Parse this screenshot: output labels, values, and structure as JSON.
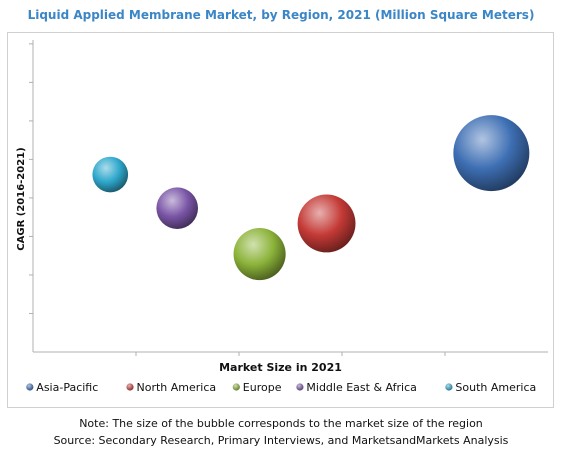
{
  "chart_data": {
    "type": "bubble",
    "title": "Liquid Applied Membrane Market, by Region, 2021 (Million Square Meters)",
    "xlabel": "Market Size in 2021",
    "ylabel": "CAGR (2016-2021)",
    "xlim": [
      0,
      10
    ],
    "ylim": [
      0,
      10
    ],
    "grid": false,
    "legend_position": "bottom",
    "series": [
      {
        "name": "Asia-Pacific",
        "x": 8.9,
        "y": 6.5,
        "size": 100,
        "color": "#3e6fb4"
      },
      {
        "name": "North America",
        "x": 5.7,
        "y": 4.2,
        "size": 58,
        "color": "#c43a36"
      },
      {
        "name": "Europe",
        "x": 4.4,
        "y": 3.2,
        "size": 47,
        "color": "#8cb33a"
      },
      {
        "name": "Middle East & Africa",
        "x": 2.8,
        "y": 4.7,
        "size": 30,
        "color": "#7a55a6"
      },
      {
        "name": "South America",
        "x": 1.5,
        "y": 5.8,
        "size": 22,
        "color": "#2fa8cc"
      }
    ]
  },
  "footnote": {
    "note": "Note: The size of the bubble corresponds to the market size of the region",
    "source": "Source: Secondary Research, Primary Interviews, and MarketsandMarkets Analysis"
  }
}
